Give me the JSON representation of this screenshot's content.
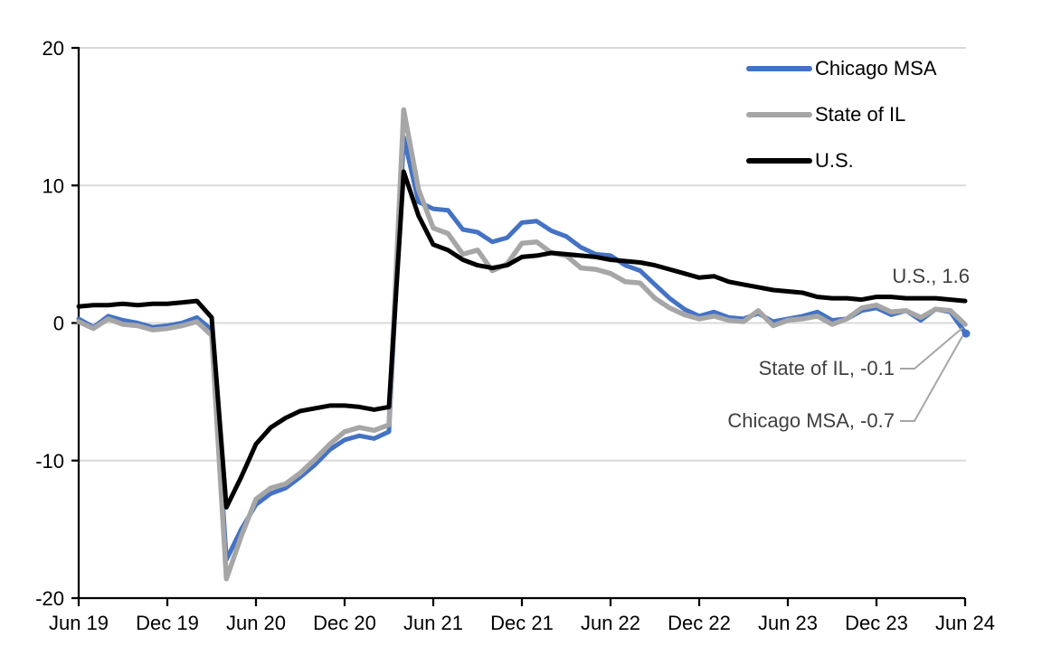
{
  "chart_data": {
    "type": "line",
    "frequency": "monthly",
    "x_tick_labels": [
      "Jun 19",
      "Dec 19",
      "Jun 20",
      "Dec 20",
      "Jun 21",
      "Dec 21",
      "Jun 22",
      "Dec 22",
      "Jun 23",
      "Dec 23",
      "Jun 24"
    ],
    "y_ticks": [
      20,
      10,
      0,
      -10,
      -20
    ],
    "ylim": [
      -20,
      20
    ],
    "grid": true,
    "legend_position": "top-right",
    "colors": {
      "axis": "#000000",
      "gridline": "#d9d9d9",
      "annotation_text": "#404040",
      "leader_line": "#a6a6a6"
    },
    "series": [
      {
        "name": "Chicago MSA",
        "color": "#4472c4",
        "end_marker": true,
        "values": [
          0.3,
          -0.3,
          0.5,
          0.2,
          0.0,
          -0.3,
          -0.2,
          0.0,
          0.4,
          -0.5,
          -17.2,
          -15.0,
          -13.2,
          -12.4,
          -12.0,
          -11.2,
          -10.3,
          -9.2,
          -8.5,
          -8.2,
          -8.4,
          -7.9,
          13.5,
          8.8,
          8.3,
          8.2,
          6.8,
          6.6,
          5.9,
          6.2,
          7.3,
          7.4,
          6.7,
          6.3,
          5.5,
          5.0,
          4.9,
          4.2,
          3.8,
          2.8,
          1.8,
          1.0,
          0.5,
          0.8,
          0.4,
          0.3,
          0.7,
          0.1,
          0.3,
          0.5,
          0.8,
          0.2,
          0.3,
          0.9,
          1.1,
          0.6,
          0.9,
          0.2,
          1.0,
          0.8,
          -0.7
        ]
      },
      {
        "name": "State of IL",
        "color": "#a6a6a6",
        "end_marker": false,
        "values": [
          0.1,
          -0.4,
          0.3,
          -0.1,
          -0.2,
          -0.5,
          -0.4,
          -0.2,
          0.1,
          -0.9,
          -18.6,
          -15.5,
          -12.8,
          -12.0,
          -11.7,
          -10.9,
          -9.9,
          -8.8,
          -7.9,
          -7.6,
          -7.8,
          -7.4,
          15.5,
          9.7,
          6.9,
          6.5,
          5.0,
          5.3,
          3.8,
          4.3,
          5.8,
          5.9,
          5.1,
          4.9,
          4.0,
          3.9,
          3.6,
          3.0,
          2.9,
          1.8,
          1.1,
          0.6,
          0.3,
          0.5,
          0.2,
          0.1,
          0.9,
          -0.2,
          0.2,
          0.3,
          0.5,
          -0.1,
          0.3,
          1.1,
          1.3,
          0.8,
          0.9,
          0.4,
          1.0,
          0.9,
          -0.1
        ]
      },
      {
        "name": "U.S.",
        "color": "#000000",
        "end_marker": false,
        "values": [
          1.2,
          1.3,
          1.3,
          1.4,
          1.3,
          1.4,
          1.4,
          1.5,
          1.6,
          0.4,
          -13.4,
          -11.2,
          -8.8,
          -7.6,
          -6.9,
          -6.4,
          -6.2,
          -6.0,
          -6.0,
          -6.1,
          -6.3,
          -6.1,
          11.0,
          7.8,
          5.7,
          5.3,
          4.6,
          4.2,
          4.0,
          4.2,
          4.8,
          4.9,
          5.1,
          5.0,
          4.9,
          4.8,
          4.6,
          4.5,
          4.4,
          4.2,
          3.9,
          3.6,
          3.3,
          3.4,
          3.0,
          2.8,
          2.6,
          2.4,
          2.3,
          2.2,
          1.9,
          1.8,
          1.8,
          1.7,
          1.9,
          1.9,
          1.8,
          1.8,
          1.8,
          1.7,
          1.6
        ]
      }
    ],
    "annotations": [
      {
        "text": "U.S., 1.6",
        "series": "U.S.",
        "value": 1.6,
        "leader": false
      },
      {
        "text": "State of IL, -0.1",
        "series": "State of IL",
        "value": -0.1,
        "leader": true,
        "label_right_x": 989,
        "label_center_y": 408
      },
      {
        "text": "Chicago MSA, -0.7",
        "series": "Chicago MSA",
        "value": -0.7,
        "leader": true,
        "label_right_x": 989,
        "label_center_y": 466
      }
    ]
  }
}
